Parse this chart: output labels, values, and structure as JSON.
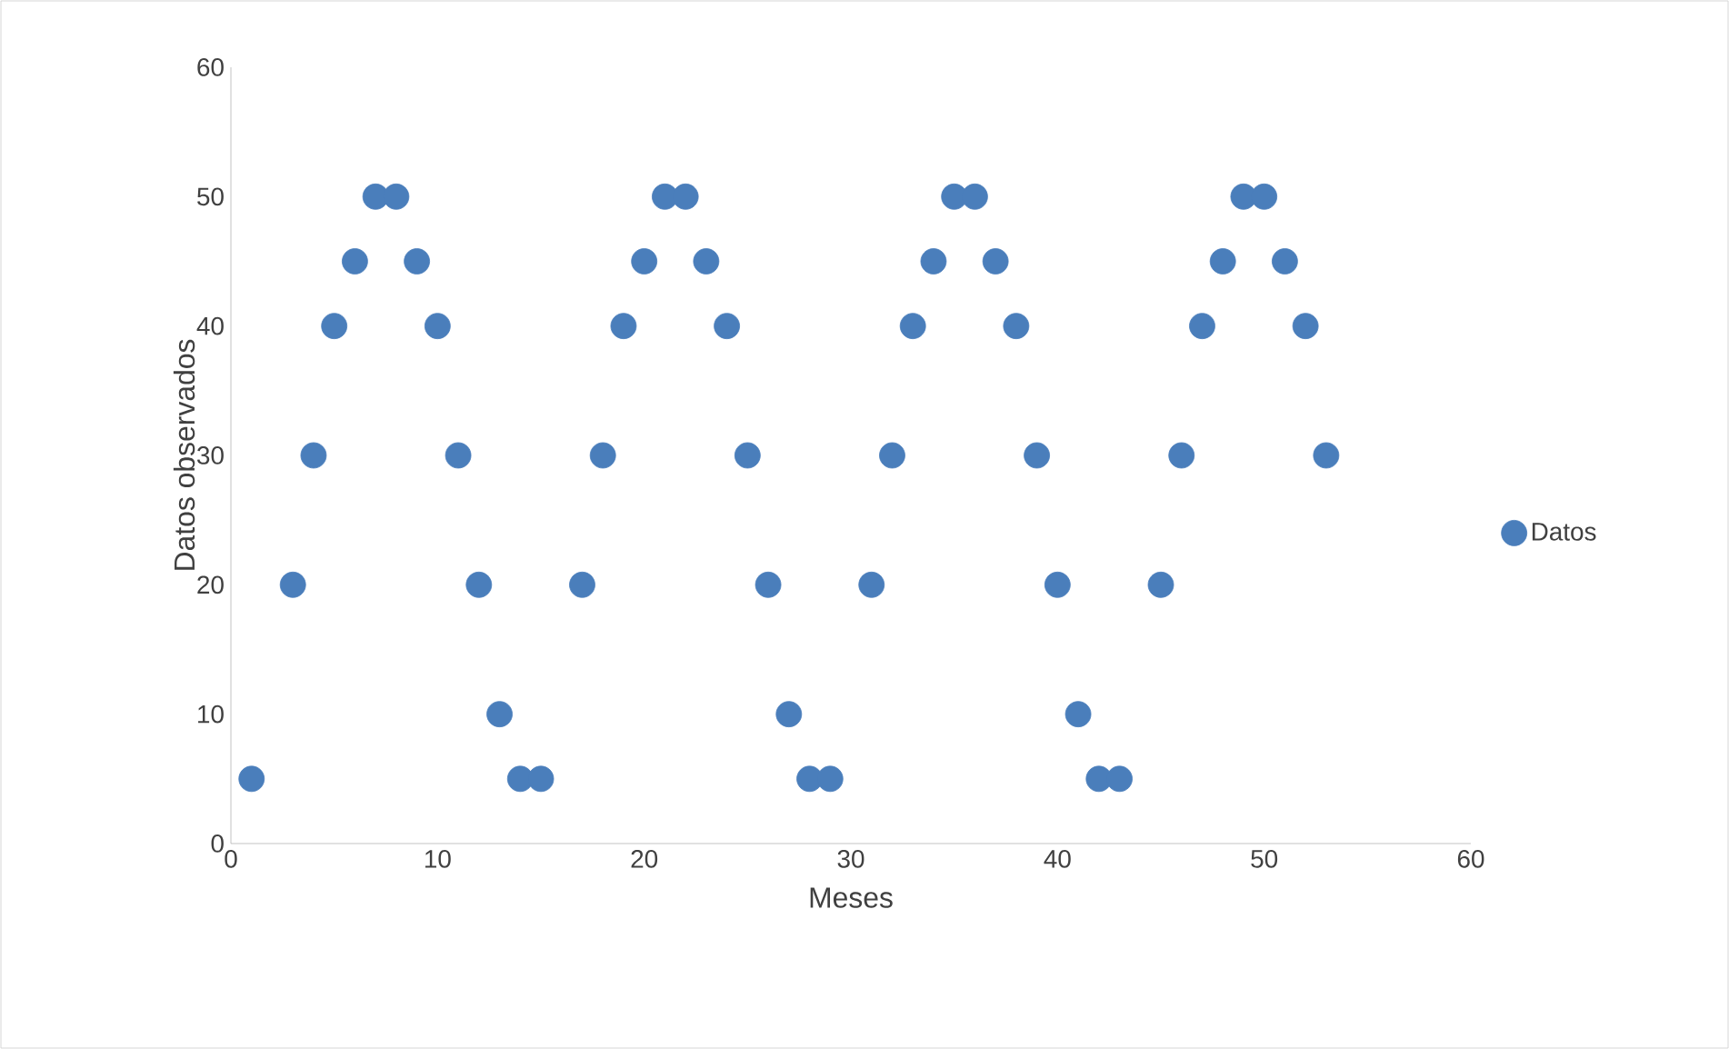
{
  "chart_data": {
    "type": "scatter",
    "xlabel": "Meses",
    "ylabel": "Datos observados",
    "xlim": [
      0,
      60
    ],
    "ylim": [
      0,
      60
    ],
    "xticks": [
      0,
      10,
      20,
      30,
      40,
      50,
      60
    ],
    "yticks": [
      0,
      10,
      20,
      30,
      40,
      50,
      60
    ],
    "grid": false,
    "legend": "right",
    "marker": "circle",
    "series": [
      {
        "name": "Datos",
        "color": "#4a7ebb",
        "x": [
          1,
          3,
          4,
          5,
          6,
          7,
          8,
          9,
          10,
          11,
          12,
          13,
          14,
          15,
          17,
          18,
          19,
          20,
          21,
          22,
          23,
          24,
          25,
          26,
          27,
          28,
          29,
          31,
          32,
          33,
          34,
          35,
          36,
          37,
          38,
          39,
          40,
          41,
          42,
          43,
          45,
          46,
          47,
          48,
          49,
          50,
          51,
          52,
          53
        ],
        "values": [
          5,
          20,
          30,
          40,
          45,
          50,
          50,
          45,
          40,
          30,
          20,
          10,
          5,
          5,
          20,
          30,
          40,
          45,
          50,
          50,
          45,
          40,
          30,
          20,
          10,
          5,
          5,
          20,
          30,
          40,
          45,
          50,
          50,
          45,
          40,
          30,
          20,
          10,
          5,
          5,
          20,
          30,
          40,
          45,
          50,
          50,
          45,
          40,
          30
        ]
      }
    ]
  }
}
